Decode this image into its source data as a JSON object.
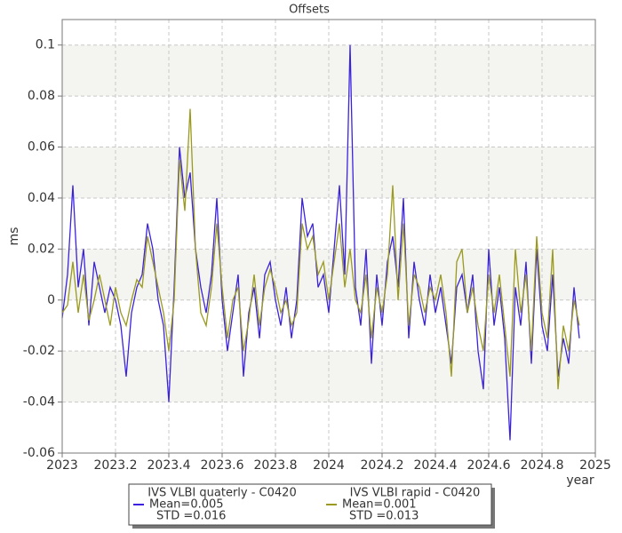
{
  "chart_data": {
    "type": "line",
    "title": "Offsets",
    "x_label": "year",
    "y_label": "ms",
    "xlim": [
      2023,
      2025
    ],
    "xticks": [
      2023,
      2023.2,
      2023.4,
      2023.6,
      2023.8,
      2024,
      2024.2,
      2024.4,
      2024.6,
      2024.8,
      2025
    ],
    "ylim": [
      -0.06,
      0.11
    ],
    "yticks": [
      -0.06,
      -0.04,
      -0.02,
      0,
      0.02,
      0.04,
      0.06,
      0.08,
      0.1
    ],
    "grid": true,
    "series": [
      {
        "name": "IVS VLBI quaterly - C0420",
        "color": "#3a22e0",
        "stats": [
          "Mean=0.005",
          "STD =0.016"
        ],
        "x": [
          2023.0,
          2023.02,
          2023.04,
          2023.06,
          2023.08,
          2023.1,
          2023.12,
          2023.14,
          2023.16,
          2023.18,
          2023.2,
          2023.22,
          2023.24,
          2023.26,
          2023.28,
          2023.3,
          2023.32,
          2023.34,
          2023.36,
          2023.38,
          2023.4,
          2023.42,
          2023.44,
          2023.46,
          2023.48,
          2023.5,
          2023.52,
          2023.54,
          2023.56,
          2023.58,
          2023.6,
          2023.62,
          2023.64,
          2023.66,
          2023.68,
          2023.7,
          2023.72,
          2023.74,
          2023.76,
          2023.78,
          2023.8,
          2023.82,
          2023.84,
          2023.86,
          2023.88,
          2023.9,
          2023.92,
          2023.94,
          2023.96,
          2023.98,
          2024.0,
          2024.02,
          2024.04,
          2024.06,
          2024.08,
          2024.1,
          2024.12,
          2024.14,
          2024.16,
          2024.18,
          2024.2,
          2024.22,
          2024.24,
          2024.26,
          2024.28,
          2024.3,
          2024.32,
          2024.34,
          2024.36,
          2024.38,
          2024.4,
          2024.42,
          2024.44,
          2024.46,
          2024.48,
          2024.5,
          2024.52,
          2024.54,
          2024.56,
          2024.58,
          2024.6,
          2024.62,
          2024.64,
          2024.66,
          2024.68,
          2024.7,
          2024.72,
          2024.74,
          2024.76,
          2024.78,
          2024.8,
          2024.82,
          2024.84,
          2024.86,
          2024.88,
          2024.9,
          2024.92,
          2024.94
        ],
        "values": [
          -0.007,
          0.01,
          0.045,
          0.005,
          0.02,
          -0.01,
          0.015,
          0.005,
          -0.005,
          0.005,
          0.0,
          -0.01,
          -0.03,
          -0.005,
          0.005,
          0.01,
          0.03,
          0.02,
          0.0,
          -0.01,
          -0.04,
          0.005,
          0.06,
          0.04,
          0.05,
          0.02,
          0.005,
          -0.005,
          0.01,
          0.04,
          0.0,
          -0.02,
          -0.005,
          0.01,
          -0.03,
          -0.005,
          0.005,
          -0.015,
          0.01,
          0.015,
          0.0,
          -0.01,
          0.005,
          -0.015,
          0.0,
          0.04,
          0.025,
          0.03,
          0.005,
          0.01,
          -0.005,
          0.02,
          0.045,
          0.01,
          0.1,
          0.005,
          -0.01,
          0.02,
          -0.025,
          0.01,
          -0.01,
          0.015,
          0.025,
          0.005,
          0.04,
          -0.015,
          0.015,
          0.0,
          -0.01,
          0.01,
          -0.005,
          0.005,
          -0.01,
          -0.025,
          0.005,
          0.01,
          -0.005,
          0.01,
          -0.02,
          -0.035,
          0.02,
          -0.01,
          0.005,
          -0.015,
          -0.055,
          0.005,
          -0.01,
          0.015,
          -0.025,
          0.02,
          -0.01,
          -0.02,
          0.01,
          -0.03,
          -0.015,
          -0.025,
          0.005,
          -0.015
        ]
      },
      {
        "name": "IVS VLBI rapid - C0420",
        "color": "#9a9a1e",
        "stats": [
          "Mean=0.001",
          "STD =0.013"
        ],
        "x": [
          2023.0,
          2023.02,
          2023.04,
          2023.06,
          2023.08,
          2023.1,
          2023.12,
          2023.14,
          2023.16,
          2023.18,
          2023.2,
          2023.22,
          2023.24,
          2023.26,
          2023.28,
          2023.3,
          2023.32,
          2023.34,
          2023.36,
          2023.38,
          2023.4,
          2023.42,
          2023.44,
          2023.46,
          2023.48,
          2023.5,
          2023.52,
          2023.54,
          2023.56,
          2023.58,
          2023.6,
          2023.62,
          2023.64,
          2023.66,
          2023.68,
          2023.7,
          2023.72,
          2023.74,
          2023.76,
          2023.78,
          2023.8,
          2023.82,
          2023.84,
          2023.86,
          2023.88,
          2023.9,
          2023.92,
          2023.94,
          2023.96,
          2023.98,
          2024.0,
          2024.02,
          2024.04,
          2024.06,
          2024.08,
          2024.1,
          2024.12,
          2024.14,
          2024.16,
          2024.18,
          2024.2,
          2024.22,
          2024.24,
          2024.26,
          2024.28,
          2024.3,
          2024.32,
          2024.34,
          2024.36,
          2024.38,
          2024.4,
          2024.42,
          2024.44,
          2024.46,
          2024.48,
          2024.5,
          2024.52,
          2024.54,
          2024.56,
          2024.58,
          2024.6,
          2024.62,
          2024.64,
          2024.66,
          2024.68,
          2024.7,
          2024.72,
          2024.74,
          2024.76,
          2024.78,
          2024.8,
          2024.82,
          2024.84,
          2024.86,
          2024.88,
          2024.9,
          2024.92,
          2024.94
        ],
        "values": [
          -0.005,
          -0.002,
          0.015,
          -0.005,
          0.01,
          -0.008,
          0.0,
          0.01,
          0.0,
          -0.01,
          0.005,
          -0.005,
          -0.01,
          0.0,
          0.008,
          0.005,
          0.025,
          0.015,
          0.005,
          -0.005,
          -0.02,
          0.0,
          0.055,
          0.035,
          0.075,
          0.02,
          -0.005,
          -0.01,
          0.005,
          0.03,
          0.005,
          -0.015,
          0.0,
          0.005,
          -0.02,
          -0.008,
          0.01,
          -0.01,
          0.005,
          0.012,
          0.005,
          -0.005,
          0.0,
          -0.01,
          -0.005,
          0.03,
          0.02,
          0.025,
          0.01,
          0.015,
          0.0,
          0.015,
          0.03,
          0.005,
          0.02,
          0.0,
          -0.005,
          0.01,
          -0.015,
          0.005,
          -0.005,
          0.01,
          0.045,
          0.0,
          0.03,
          -0.01,
          0.01,
          0.005,
          -0.005,
          0.005,
          0.0,
          0.01,
          -0.005,
          -0.03,
          0.015,
          0.02,
          -0.005,
          0.005,
          -0.01,
          -0.02,
          0.01,
          -0.005,
          0.01,
          -0.01,
          -0.03,
          0.02,
          -0.005,
          0.01,
          -0.02,
          0.025,
          -0.005,
          -0.015,
          0.02,
          -0.035,
          -0.01,
          -0.02,
          0.0,
          -0.01
        ]
      }
    ]
  }
}
